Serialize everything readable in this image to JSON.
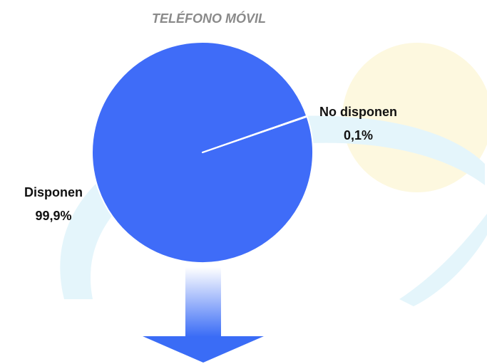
{
  "chart_data": {
    "type": "pie",
    "title": "TELÉFONO MÓVIL",
    "categories": [
      "Disponen",
      "No disponen"
    ],
    "values": [
      99.9,
      0.1
    ],
    "value_labels": [
      "99,9%",
      "0,1%"
    ],
    "colors": [
      "#3f6cf8",
      "#3f6cf8"
    ]
  }
}
